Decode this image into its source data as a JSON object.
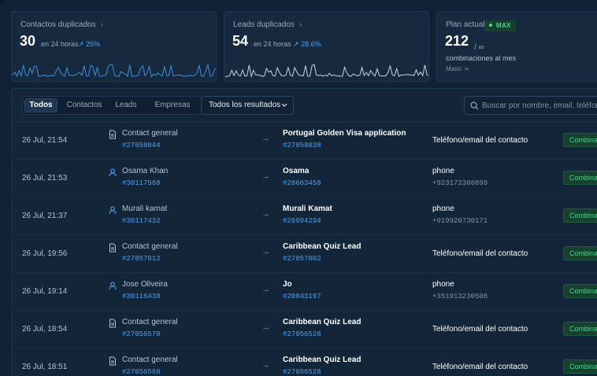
{
  "cards": {
    "contacts": {
      "title": "Contactos duplicados",
      "value": "30",
      "period": "en 24 horas",
      "delta": "25%"
    },
    "leads": {
      "title": "Leads duplicados",
      "value": "54",
      "period": "en 24 horas",
      "delta": "28.6%"
    },
    "plan": {
      "title": "Plan actual",
      "badge": "MAX",
      "value": "212",
      "unit": "/ ∞",
      "line1": "combinaciones al mes",
      "line2": "Mass: ∞"
    }
  },
  "toolbar": {
    "tabs": [
      "Todos",
      "Contactos",
      "Leads",
      "Empresas"
    ],
    "active_tab": "Todos",
    "filter_label": "Todos los resultados",
    "search_placeholder": "Buscar por nombre, email, teléfono"
  },
  "rows": [
    {
      "date": "26 Jul, 21:54",
      "source_type": "document",
      "source_name": "Contact general",
      "source_id": "#27058044",
      "target_name": "Portugal Golden Visa application",
      "target_id": "#27058038",
      "field": "Teléfono/email del contacto",
      "field_value": "",
      "status": "Combinado"
    },
    {
      "date": "26 Jul, 21:53",
      "source_type": "person",
      "source_name": "Osama Khan",
      "source_id": "#30117568",
      "target_name": "Osama",
      "target_id": "#28663458",
      "field": "phone",
      "field_value": "+923172308899",
      "status": "Combinado"
    },
    {
      "date": "26 Jul, 21:37",
      "source_type": "person",
      "source_name": "Murali kamat",
      "source_id": "#30117432",
      "target_name": "Murali Kamat",
      "target_id": "#28994294",
      "field": "phone",
      "field_value": "+919920730171",
      "status": "Combinado"
    },
    {
      "date": "26 Jul, 19:56",
      "source_type": "document",
      "source_name": "Contact general",
      "source_id": "#27057012",
      "target_name": "Caribbean Quiz Lead",
      "target_id": "#27057002",
      "field": "Teléfono/email del contacto",
      "field_value": "",
      "status": "Combinado"
    },
    {
      "date": "26 Jul, 19:14",
      "source_type": "person",
      "source_name": "Jose Oliveira",
      "source_id": "#30116438",
      "target_name": "Jo",
      "target_id": "#20843197",
      "field": "phone",
      "field_value": "+351913230506",
      "status": "Combinado"
    },
    {
      "date": "26 Jul, 18:54",
      "source_type": "document",
      "source_name": "Contact general",
      "source_id": "#27056570",
      "target_name": "Caribbean Quiz Lead",
      "target_id": "#27056528",
      "field": "Teléfono/email del contacto",
      "field_value": "",
      "status": "Combinado"
    },
    {
      "date": "26 Jul, 18:51",
      "source_type": "document",
      "source_name": "Contact general",
      "source_id": "#27056560",
      "target_name": "Caribbean Quiz Lead",
      "target_id": "#27056528",
      "field": "Teléfono/email del contacto",
      "field_value": "",
      "status": "Combinado"
    }
  ],
  "colors": {
    "accent": "#4aa3f0",
    "success": "#49d68a",
    "background": "#112236"
  },
  "icons": {
    "chevron": "chevron-right-icon",
    "trend": "trend-up-icon",
    "person": "person-icon",
    "document": "document-icon",
    "arrow": "arrow-right-icon",
    "search": "search-icon"
  }
}
